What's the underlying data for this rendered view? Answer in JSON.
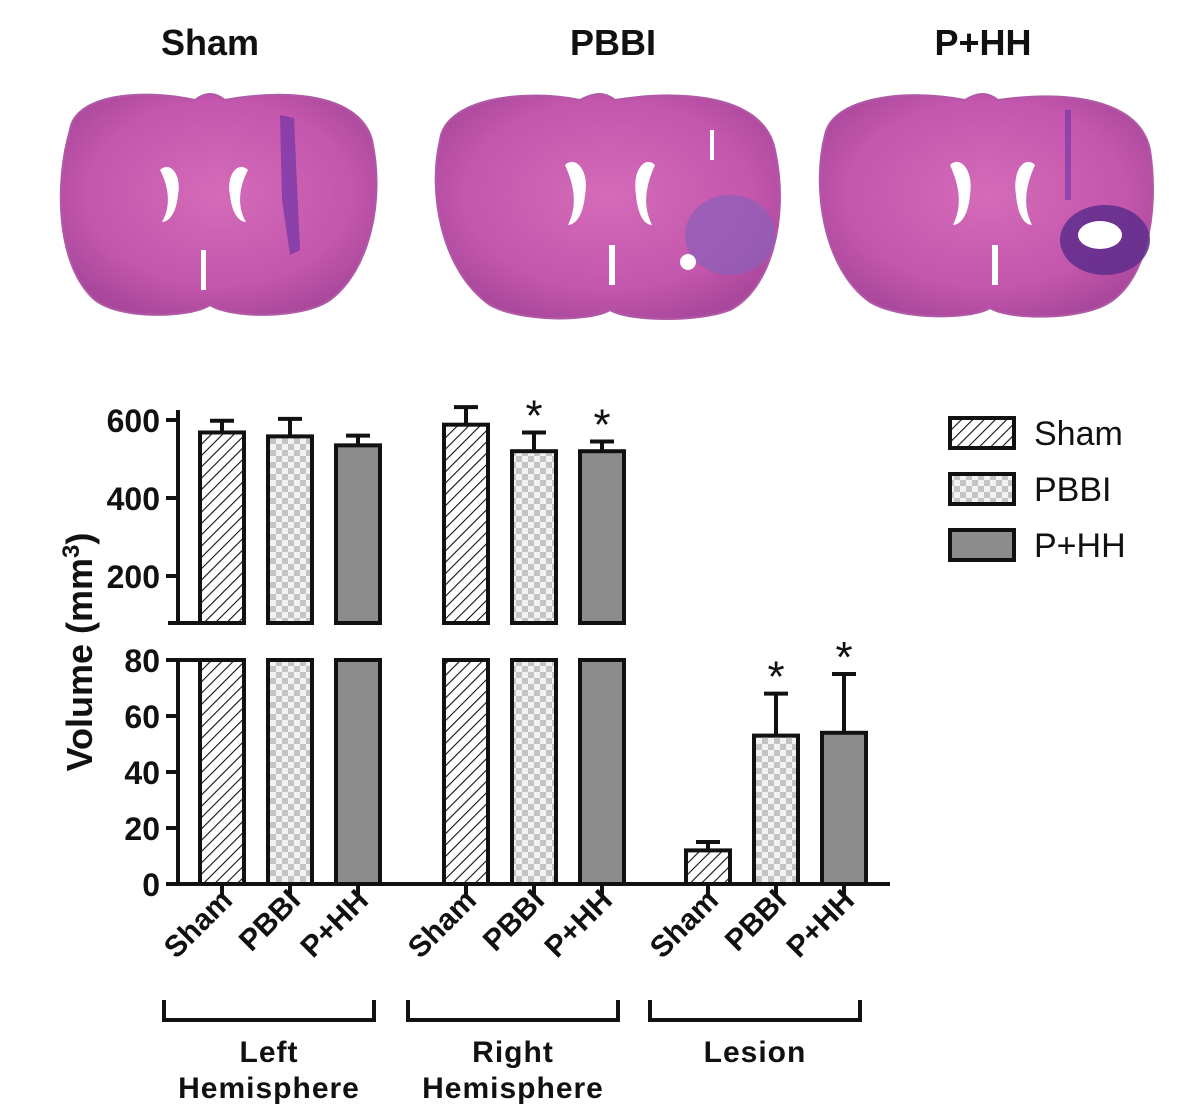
{
  "images": {
    "titles": [
      "Sham",
      "PBBI",
      "P+HH"
    ]
  },
  "chart_data": {
    "type": "bar",
    "ylabel_main": "Volume",
    "ylabel_unit": "(mm",
    "ylabel_sup": "3",
    "ylabel_close": ")",
    "axis_break": true,
    "ylim_lower": [
      0,
      80
    ],
    "ylim_upper": [
      100,
      650
    ],
    "yticks_lower": [
      "0",
      "20",
      "40",
      "60",
      "80"
    ],
    "yticks_upper": [
      "200",
      "400",
      "600"
    ],
    "groups": [
      "Left Hemisphere",
      "Right Hemisphere",
      "Lesion"
    ],
    "group_label_lines": [
      [
        "Left",
        "Hemisphere"
      ],
      [
        "Right",
        "Hemisphere"
      ],
      [
        "Lesion"
      ]
    ],
    "categories": [
      "Sham",
      "PBBI",
      "P+HH"
    ],
    "series": [
      {
        "name": "Sham",
        "pattern": "hatch",
        "values": [
          568,
          588,
          12
        ],
        "errors": [
          30,
          45,
          3
        ]
      },
      {
        "name": "PBBI",
        "pattern": "checker",
        "values": [
          558,
          520,
          53
        ],
        "errors": [
          45,
          48,
          15
        ]
      },
      {
        "name": "P+HH",
        "pattern": "solid",
        "values": [
          535,
          520,
          54
        ],
        "errors": [
          25,
          25,
          21
        ]
      }
    ],
    "significance_marker": "*",
    "significant": [
      [
        false,
        false,
        false
      ],
      [
        false,
        true,
        true
      ],
      [
        false,
        true,
        true
      ]
    ],
    "legend": {
      "entries": [
        "Sham",
        "PBBI",
        "P+HH"
      ],
      "position": "top-right"
    },
    "colors": {
      "solid_fill": "#8c8c8c",
      "checker_light": "#f2f2f2",
      "checker_dark": "#c4c4c4",
      "stroke": "#111111"
    }
  }
}
